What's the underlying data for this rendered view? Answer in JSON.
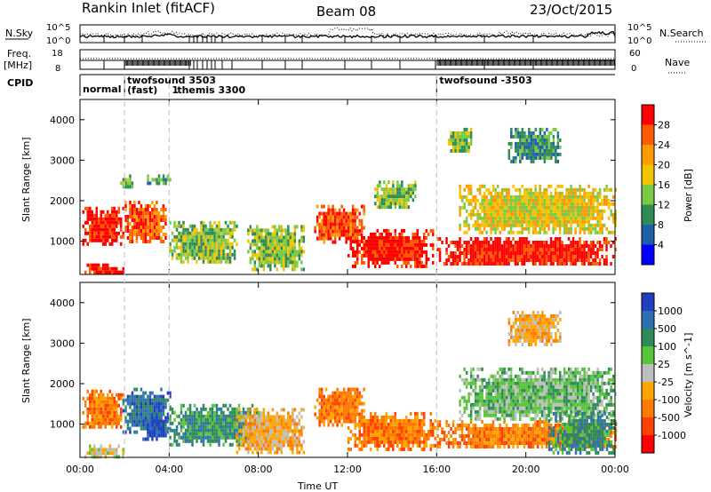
{
  "header": {
    "station": "Rankin Inlet (fitACF)",
    "beam": "Beam 08",
    "date": "23/Oct/2015"
  },
  "top_panels": {
    "nsky": {
      "label": "N.Sky",
      "ticks": [
        "10^5",
        "10^0"
      ]
    },
    "nsearch": {
      "label": "N.Search",
      "ticks": [
        "10^5",
        "10^0"
      ]
    },
    "freq": {
      "label_line1": "Freq.",
      "label_line2": "[MHz]",
      "ticks": [
        "18",
        "8"
      ]
    },
    "nave": {
      "label": "Nave",
      "ticks": [
        "60",
        "0"
      ]
    },
    "cpid": {
      "label": "CPID",
      "segments": [
        {
          "name": "normal",
          "start_hour": 0.0,
          "end_hour": 2.0
        },
        {
          "name": "twofsound 3503",
          "start_hour": 2.0,
          "end_hour": 4.0
        },
        {
          "name": "(fast)",
          "start_hour": 2.0,
          "end_hour": 4.0
        },
        {
          "name": "1",
          "start_hour": 4.0,
          "end_hour": 4.2
        },
        {
          "name": "themis 3300",
          "start_hour": 4.2,
          "end_hour": 16.0
        },
        {
          "name": "twofsound -3503",
          "start_hour": 16.0,
          "end_hour": 24.0
        }
      ]
    }
  },
  "chart_data": [
    {
      "type": "heatmap",
      "name": "power",
      "ylabel": "Slant Range [km]",
      "xlabel": "",
      "xlim": [
        0,
        24
      ],
      "ylim": [
        180,
        4500
      ],
      "yticks": [
        "1000",
        "2000",
        "3000",
        "4000"
      ],
      "colorbar": {
        "label": "Power [dB]",
        "ticks": [
          "28",
          "24",
          "20",
          "16",
          "12",
          "8",
          "4"
        ],
        "colors": [
          "#ff0000",
          "#ff5a00",
          "#ff9a00",
          "#f2c400",
          "#7ac943",
          "#2e8b57",
          "#1f5fa8",
          "#0000ff"
        ]
      },
      "regions": [
        {
          "x": [
            0.1,
            1.9
          ],
          "y": [
            900,
            1850
          ],
          "level": 28
        },
        {
          "x": [
            0.2,
            1.9
          ],
          "y": [
            200,
            450
          ],
          "level": 28
        },
        {
          "x": [
            2.0,
            3.8
          ],
          "y": [
            1000,
            2000
          ],
          "level": 24
        },
        {
          "x": [
            1.8,
            2.3
          ],
          "y": [
            2300,
            2650
          ],
          "level": 12
        },
        {
          "x": [
            3.0,
            4.0
          ],
          "y": [
            2450,
            2650
          ],
          "level": 8
        },
        {
          "x": [
            4.0,
            7.0
          ],
          "y": [
            500,
            1500
          ],
          "level": 12
        },
        {
          "x": [
            7.5,
            10.0
          ],
          "y": [
            300,
            1400
          ],
          "level": 12
        },
        {
          "x": [
            10.5,
            12.7
          ],
          "y": [
            1000,
            1900
          ],
          "level": 24
        },
        {
          "x": [
            12.0,
            15.8
          ],
          "y": [
            400,
            1300
          ],
          "level": 28
        },
        {
          "x": [
            13.2,
            15.0
          ],
          "y": [
            1800,
            2500
          ],
          "level": 12
        },
        {
          "x": [
            16.0,
            24.0
          ],
          "y": [
            400,
            1100
          ],
          "level": 28
        },
        {
          "x": [
            17.0,
            24.0
          ],
          "y": [
            1200,
            2400
          ],
          "level": 16
        },
        {
          "x": [
            16.5,
            17.5
          ],
          "y": [
            3200,
            3800
          ],
          "level": 12
        },
        {
          "x": [
            19.2,
            21.5
          ],
          "y": [
            3000,
            3800
          ],
          "level": 8
        }
      ]
    },
    {
      "type": "heatmap",
      "name": "velocity",
      "ylabel": "Slant Range [km]",
      "xlabel": "Time UT",
      "xlim": [
        0,
        24
      ],
      "ylim": [
        180,
        4500
      ],
      "xticks": [
        "00:00",
        "04:00",
        "08:00",
        "12:00",
        "16:00",
        "20:00",
        "00:00"
      ],
      "yticks": [
        "1000",
        "2000",
        "3000",
        "4000"
      ],
      "colorbar": {
        "label": "Velocity [m s^-1]",
        "ticks": [
          "1000",
          "500",
          "100",
          "25",
          "-25",
          "-100",
          "-500",
          "-1000"
        ],
        "colors": [
          "#1f3fbf",
          "#2e6fb0",
          "#2e8b57",
          "#58c43a",
          "#bebebe",
          "#ffa500",
          "#ff7a00",
          "#ff4000",
          "#ff0000"
        ]
      },
      "regions": [
        {
          "x": [
            0.1,
            1.9
          ],
          "y": [
            900,
            1850
          ],
          "level": -500
        },
        {
          "x": [
            0.2,
            1.9
          ],
          "y": [
            200,
            500
          ],
          "level": -25
        },
        {
          "x": [
            1.9,
            4.0
          ],
          "y": [
            800,
            1900
          ],
          "level": 500
        },
        {
          "x": [
            2.8,
            3.8
          ],
          "y": [
            600,
            1200
          ],
          "level": 1000
        },
        {
          "x": [
            4.0,
            8.0
          ],
          "y": [
            500,
            1500
          ],
          "level": 100
        },
        {
          "x": [
            7.0,
            10.0
          ],
          "y": [
            300,
            1400
          ],
          "level": -100
        },
        {
          "x": [
            10.5,
            12.7
          ],
          "y": [
            1000,
            1900
          ],
          "level": -500
        },
        {
          "x": [
            12.0,
            16.0
          ],
          "y": [
            400,
            1300
          ],
          "level": -500
        },
        {
          "x": [
            16.0,
            24.0
          ],
          "y": [
            400,
            1100
          ],
          "level": -500
        },
        {
          "x": [
            17.0,
            24.0
          ],
          "y": [
            1100,
            2400
          ],
          "level": 25
        },
        {
          "x": [
            21.0,
            24.0
          ],
          "y": [
            300,
            1300
          ],
          "level": 100
        },
        {
          "x": [
            19.2,
            21.5
          ],
          "y": [
            3000,
            3800
          ],
          "level": -100
        }
      ]
    }
  ]
}
